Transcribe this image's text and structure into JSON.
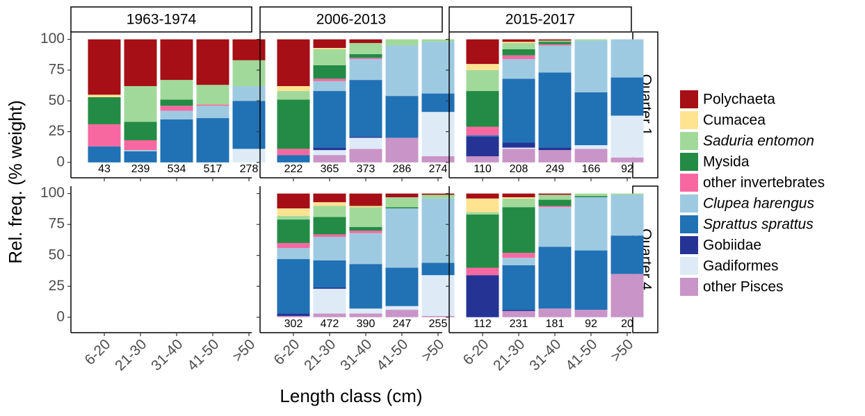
{
  "chart_data": {
    "type": "bar",
    "stacked": true,
    "xlabel": "Length class (cm)",
    "ylabel": "Rel. freq. (% weight)",
    "categories": [
      "6-20",
      "21-30",
      "31-40",
      "41-50",
      ">50"
    ],
    "facet_columns": [
      "1963-1974",
      "2006-2013",
      "2015-2017"
    ],
    "facet_rows": [
      "Quarter 1",
      "Quarter 4"
    ],
    "ylim": [
      -12.5,
      106
    ],
    "yticks": [
      0,
      25,
      50,
      75,
      100
    ],
    "series": [
      {
        "name": "Polychaeta",
        "color": "#a50f15",
        "italic": false
      },
      {
        "name": "Cumacea",
        "color": "#fee391",
        "italic": false
      },
      {
        "name": "Saduria entomon",
        "color": "#a1d99b",
        "italic": true
      },
      {
        "name": "Mysida",
        "color": "#238b45",
        "italic": false
      },
      {
        "name": "other invertebrates",
        "color": "#f768a1",
        "italic": false
      },
      {
        "name": "Clupea harengus",
        "color": "#9ecae1",
        "italic": true
      },
      {
        "name": "Sprattus sprattus",
        "color": "#2171b5",
        "italic": true
      },
      {
        "name": "Gobiidae",
        "color": "#253494",
        "italic": false
      },
      {
        "name": "Gadiformes",
        "color": "#deebf7",
        "italic": false
      },
      {
        "name": "other Pisces",
        "color": "#c994c7",
        "italic": false
      }
    ],
    "panels": [
      {
        "sample_sizes": [
          43,
          239,
          534,
          517,
          278
        ],
        "values": [
          [
            45,
            38,
            33,
            37,
            17
          ],
          [
            2,
            0,
            0,
            0,
            0
          ],
          [
            0,
            29,
            16,
            16,
            21
          ],
          [
            22,
            15,
            5,
            0,
            0
          ],
          [
            18,
            8,
            4,
            1,
            0
          ],
          [
            0,
            1,
            7,
            10,
            12
          ],
          [
            13,
            9,
            35,
            36,
            39
          ],
          [
            0,
            0,
            0,
            0,
            0
          ],
          [
            0,
            0,
            0,
            0,
            11
          ],
          [
            0,
            0,
            0,
            0,
            0
          ]
        ]
      },
      {
        "sample_sizes": [
          222,
          365,
          373,
          286,
          274
        ],
        "values": [
          [
            38,
            7,
            3,
            0,
            0
          ],
          [
            4,
            1,
            0,
            0,
            0
          ],
          [
            7,
            13,
            9,
            5,
            2
          ],
          [
            40,
            11,
            3,
            0,
            0
          ],
          [
            5,
            2,
            1,
            0,
            0
          ],
          [
            0,
            8,
            17,
            41,
            42
          ],
          [
            6,
            46,
            46,
            34,
            15
          ],
          [
            0,
            2,
            1,
            0,
            0
          ],
          [
            0,
            4,
            9,
            0,
            36
          ],
          [
            0,
            6,
            11,
            20,
            5
          ]
        ]
      },
      {
        "sample_sizes": [
          110,
          208,
          249,
          166,
          92
        ],
        "values": [
          [
            20,
            2,
            1,
            0,
            0
          ],
          [
            5,
            1,
            0,
            0,
            0
          ],
          [
            17,
            5,
            1,
            1,
            0
          ],
          [
            29,
            5,
            2,
            0,
            0
          ],
          [
            7,
            3,
            1,
            0,
            0
          ],
          [
            0,
            16,
            22,
            42,
            31
          ],
          [
            1,
            52,
            61,
            43,
            31
          ],
          [
            16,
            4,
            2,
            0,
            0
          ],
          [
            0,
            1,
            0,
            3,
            34
          ],
          [
            5,
            11,
            10,
            11,
            4
          ]
        ]
      },
      {
        "sample_sizes": [
          null,
          null,
          null,
          null,
          null
        ],
        "values": [
          [
            null,
            null,
            null,
            null,
            null
          ],
          [
            null,
            null,
            null,
            null,
            null
          ],
          [
            null,
            null,
            null,
            null,
            null
          ],
          [
            null,
            null,
            null,
            null,
            null
          ],
          [
            null,
            null,
            null,
            null,
            null
          ],
          [
            null,
            null,
            null,
            null,
            null
          ],
          [
            null,
            null,
            null,
            null,
            null
          ],
          [
            null,
            null,
            null,
            null,
            null
          ],
          [
            null,
            null,
            null,
            null,
            null
          ],
          [
            null,
            null,
            null,
            null,
            null
          ]
        ]
      },
      {
        "sample_sizes": [
          302,
          472,
          390,
          247,
          255
        ],
        "values": [
          [
            12,
            7,
            10,
            3,
            1
          ],
          [
            6,
            3,
            1,
            0,
            0
          ],
          [
            3,
            9,
            16,
            8,
            3
          ],
          [
            19,
            14,
            3,
            1,
            0
          ],
          [
            4,
            2,
            2,
            0,
            0
          ],
          [
            9,
            19,
            25,
            48,
            52
          ],
          [
            44,
            22,
            36,
            31,
            10
          ],
          [
            2,
            1,
            0,
            0,
            0
          ],
          [
            0,
            20,
            4,
            3,
            33
          ],
          [
            1,
            3,
            3,
            6,
            1
          ]
        ]
      },
      {
        "sample_sizes": [
          112,
          231,
          181,
          92,
          20
        ],
        "values": [
          [
            4,
            3,
            1,
            0,
            0
          ],
          [
            11,
            1,
            0,
            0,
            0
          ],
          [
            2,
            7,
            4,
            2,
            1
          ],
          [
            43,
            37,
            5,
            1,
            0
          ],
          [
            6,
            4,
            1,
            0,
            0
          ],
          [
            0,
            6,
            32,
            43,
            33
          ],
          [
            0,
            36,
            50,
            48,
            31
          ],
          [
            34,
            1,
            0,
            0,
            0
          ],
          [
            0,
            0,
            0,
            0,
            0
          ],
          [
            0,
            5,
            7,
            6,
            35
          ]
        ]
      }
    ]
  }
}
